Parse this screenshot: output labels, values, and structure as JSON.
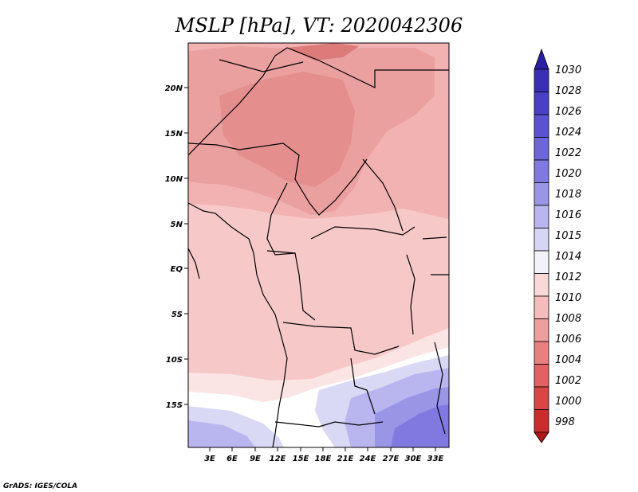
{
  "map": {
    "title": "MSLP [hPa], VT: 2020042306",
    "lat_labels": [
      "20N",
      "15N",
      "10N",
      "5N",
      "EQ",
      "5S",
      "10S",
      "15S"
    ],
    "lon_labels": [
      "3E",
      "6E",
      "9E",
      "12E",
      "15E",
      "18E",
      "21E",
      "24E",
      "27E",
      "30E",
      "33E"
    ],
    "credit": "GrADS: IGES/COLA"
  },
  "colorbar": {
    "labels": [
      "1030",
      "1028",
      "1026",
      "1024",
      "1022",
      "1020",
      "1018",
      "1016",
      "1015",
      "1014",
      "1012",
      "1010",
      "1008",
      "1006",
      "1004",
      "1002",
      "1000",
      "998"
    ],
    "colors": [
      "#2a1fa0",
      "#3a2fb4",
      "#4a40c4",
      "#5a52cf",
      "#6c66d8",
      "#807ae0",
      "#9a96e6",
      "#b9b6ef",
      "#d6d5f6",
      "#f2f2fb",
      "#fbd8d8",
      "#f6bcbc",
      "#ef9e9e",
      "#e88080",
      "#e06262",
      "#d84646",
      "#cc2c2c",
      "#b01818"
    ]
  },
  "legend_items": [
    {
      "label": "1030",
      "color": "#2a1fa0"
    },
    {
      "label": "998",
      "color": "#b01818"
    }
  ]
}
